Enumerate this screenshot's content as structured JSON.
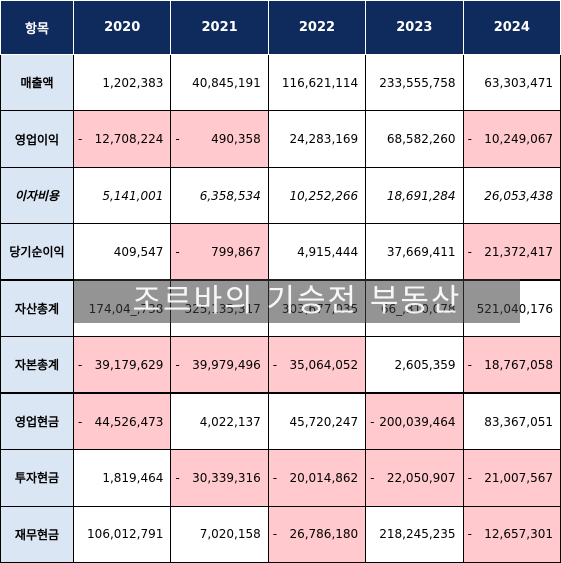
{
  "header": {
    "item": "항목",
    "years": [
      "2020",
      "2021",
      "2022",
      "2023",
      "2024"
    ]
  },
  "rows": [
    {
      "label": "매출액",
      "italic": false,
      "sep_top": false,
      "cells": [
        {
          "v": "1,202,383",
          "neg": false
        },
        {
          "v": "40,845,191",
          "neg": false
        },
        {
          "v": "116,621,114",
          "neg": false
        },
        {
          "v": "233,555,758",
          "neg": false
        },
        {
          "v": "63,303,471",
          "neg": false
        }
      ]
    },
    {
      "label": "영업이익",
      "italic": false,
      "sep_top": false,
      "cells": [
        {
          "v": "12,708,224",
          "neg": true
        },
        {
          "v": "490,358",
          "neg": true
        },
        {
          "v": "24,283,169",
          "neg": false
        },
        {
          "v": "68,582,260",
          "neg": false
        },
        {
          "v": "10,249,067",
          "neg": true
        }
      ]
    },
    {
      "label": "이자비용",
      "italic": true,
      "sep_top": false,
      "cells": [
        {
          "v": "5,141,001",
          "neg": false
        },
        {
          "v": "6,358,534",
          "neg": false
        },
        {
          "v": "10,252,266",
          "neg": false
        },
        {
          "v": "18,691,284",
          "neg": false
        },
        {
          "v": "26,053,438",
          "neg": false
        }
      ]
    },
    {
      "label": "당기순이익",
      "italic": false,
      "sep_top": false,
      "cells": [
        {
          "v": "409,547",
          "neg": false
        },
        {
          "v": "799,867",
          "neg": true
        },
        {
          "v": "4,915,444",
          "neg": false
        },
        {
          "v": "37,669,411",
          "neg": false
        },
        {
          "v": "21,372,417",
          "neg": true
        }
      ]
    },
    {
      "label": "자산총계",
      "italic": false,
      "sep_top": true,
      "cells": [
        {
          "v": "174,04_,738",
          "neg": false
        },
        {
          "v": "325,135,317",
          "neg": false
        },
        {
          "v": "303,677,035",
          "neg": false
        },
        {
          "v": "66_,310,078",
          "neg": false
        },
        {
          "v": "521,040,176",
          "neg": false
        }
      ]
    },
    {
      "label": "자본총계",
      "italic": false,
      "sep_top": false,
      "cells": [
        {
          "v": "39,179,629",
          "neg": true
        },
        {
          "v": "39,979,496",
          "neg": true
        },
        {
          "v": "35,064,052",
          "neg": true
        },
        {
          "v": "2,605,359",
          "neg": false
        },
        {
          "v": "18,767,058",
          "neg": true
        }
      ]
    },
    {
      "label": "영업현금",
      "italic": false,
      "sep_top": true,
      "cells": [
        {
          "v": "44,526,473",
          "neg": true
        },
        {
          "v": "4,022,137",
          "neg": false
        },
        {
          "v": "45,720,247",
          "neg": false
        },
        {
          "v": "200,039,464",
          "neg": true
        },
        {
          "v": "83,367,051",
          "neg": false
        }
      ]
    },
    {
      "label": "투자현금",
      "italic": false,
      "sep_top": false,
      "cells": [
        {
          "v": "1,819,464",
          "neg": false
        },
        {
          "v": "30,339,316",
          "neg": true
        },
        {
          "v": "20,014,862",
          "neg": true
        },
        {
          "v": "22,050,907",
          "neg": true
        },
        {
          "v": "21,007,567",
          "neg": true
        }
      ]
    },
    {
      "label": "재무현금",
      "italic": false,
      "sep_top": false,
      "cells": [
        {
          "v": "106,012,791",
          "neg": false
        },
        {
          "v": "7,020,158",
          "neg": false
        },
        {
          "v": "26,786,180",
          "neg": true
        },
        {
          "v": "218,245,235",
          "neg": false
        },
        {
          "v": "12,657,301",
          "neg": true
        }
      ]
    }
  ],
  "neg_sign": "-",
  "watermark": "조르바의 기승전 부동산",
  "colors": {
    "header_bg": "#0f2a5c",
    "label_bg": "#dbe6f4",
    "neg_bg": "#ffc9ce",
    "neg_text": "#9c0006"
  }
}
